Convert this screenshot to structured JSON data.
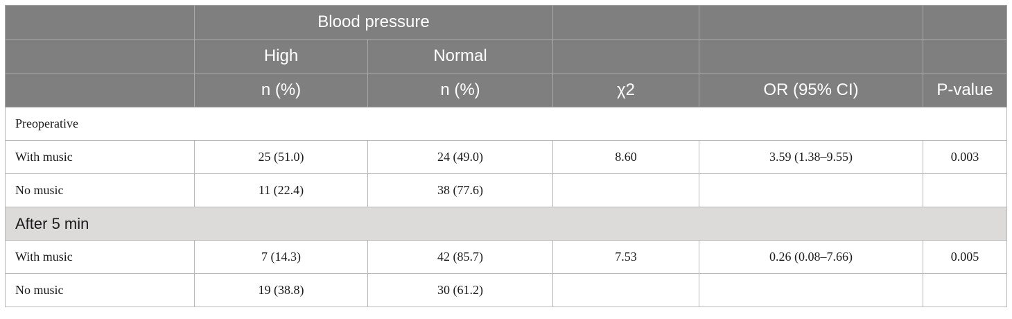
{
  "table": {
    "header": {
      "group_label": "Blood pressure",
      "high_label": "High",
      "normal_label": "Normal",
      "high_unit": "n (%)",
      "normal_unit": "n (%)",
      "chi2_label": "χ2",
      "or_label": "OR (95% CI)",
      "pvalue_label": "P-value"
    },
    "sections": [
      {
        "title": "Preoperative",
        "rows": [
          {
            "label": "With music",
            "high": "25 (51.0)",
            "normal": "24 (49.0)",
            "chi2": "8.60",
            "or": "3.59 (1.38–9.55)",
            "p": "0.003"
          },
          {
            "label": "No music",
            "high": "11 (22.4)",
            "normal": "38 (77.6)",
            "chi2": "",
            "or": "",
            "p": ""
          }
        ]
      },
      {
        "title": "After 5 min",
        "rows": [
          {
            "label": "With music",
            "high": "7 (14.3)",
            "normal": "42 (85.7)",
            "chi2": "7.53",
            "or": "0.26 (0.08–7.66)",
            "p": "0.005"
          },
          {
            "label": "No music",
            "high": "19 (38.8)",
            "normal": "30 (61.2)",
            "chi2": "",
            "or": "",
            "p": ""
          }
        ]
      }
    ]
  }
}
